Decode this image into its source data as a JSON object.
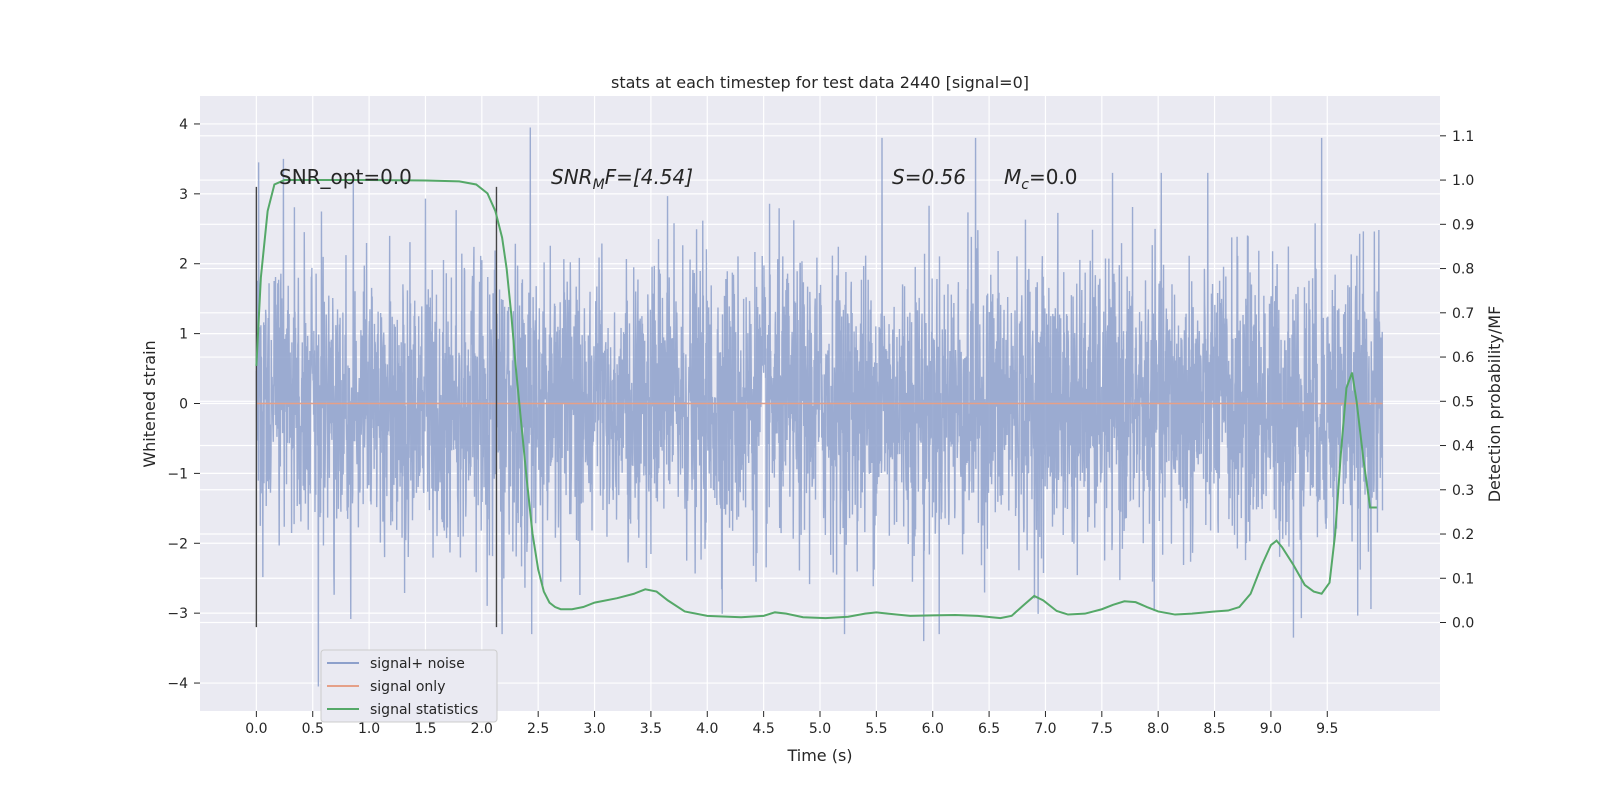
{
  "chart_data": {
    "type": "line",
    "title": "stats at each timestep for test data 2440 [signal=0]",
    "xlabel": "Time (s)",
    "ylabel": "Whitened strain",
    "y2label": "Detection probability/MF",
    "xlim": [
      -0.5,
      10.5
    ],
    "ylim": [
      -4.4,
      4.4
    ],
    "y2lim": [
      -0.2,
      1.19
    ],
    "xticks": [
      "0.0",
      "0.5",
      "1.0",
      "1.5",
      "2.0",
      "2.5",
      "3.0",
      "3.5",
      "4.0",
      "4.5",
      "5.0",
      "5.5",
      "6.0",
      "6.5",
      "7.0",
      "7.5",
      "8.0",
      "8.5",
      "9.0",
      "9.5"
    ],
    "yticks": [
      "4",
      "3",
      "2",
      "1",
      "0",
      "−1",
      "−2",
      "−3",
      "−4"
    ],
    "y2ticks": [
      "0.0",
      "0.1",
      "0.2",
      "0.3",
      "0.4",
      "0.5",
      "0.6",
      "0.7",
      "0.8",
      "0.9",
      "1.0",
      "1.1"
    ],
    "grid": true,
    "legend_position": "lower-left",
    "annotations": {
      "snr_opt": "SNR_opt=0.0",
      "snr_mf_base": "SNR",
      "snr_mf_sub": "M",
      "snr_mf_rest": "F=[4.54]",
      "s_label": "S=0.56",
      "mc_base": "M",
      "mc_sub": "c",
      "mc_rest": "=0.0"
    },
    "vertical_markers_x": [
      0.0,
      2.13
    ],
    "series": [
      {
        "name": "signal+ noise",
        "axis": "left",
        "color": "#8da0cb",
        "description": "whitened noise, approx. Gaussian around 0 with amplitude up to ±4",
        "x_range": [
          0.0,
          9.99
        ],
        "sample_spacing": 0.0025,
        "notable_peaks": [
          [
            0.02,
            3.45
          ],
          [
            0.24,
            3.5
          ],
          [
            2.43,
            3.95
          ],
          [
            5.55,
            3.8
          ],
          [
            6.38,
            3.8
          ],
          [
            9.45,
            3.8
          ],
          [
            0.55,
            -4.05
          ],
          [
            5.92,
            -3.4
          ],
          [
            9.2,
            -3.35
          ]
        ]
      },
      {
        "name": "signal only",
        "axis": "left",
        "color": "#e5a088",
        "x": [
          0.0,
          9.99
        ],
        "y": [
          0.0,
          0.0
        ]
      },
      {
        "name": "signal statistics",
        "axis": "right",
        "color": "#55a868",
        "x": [
          0.0,
          0.04,
          0.1,
          0.16,
          0.25,
          0.4,
          0.6,
          1.0,
          1.5,
          1.8,
          1.95,
          2.05,
          2.12,
          2.18,
          2.22,
          2.26,
          2.3,
          2.35,
          2.4,
          2.45,
          2.5,
          2.55,
          2.6,
          2.65,
          2.7,
          2.8,
          2.9,
          3.0,
          3.2,
          3.35,
          3.45,
          3.55,
          3.65,
          3.8,
          4.0,
          4.3,
          4.5,
          4.6,
          4.7,
          4.85,
          5.05,
          5.25,
          5.4,
          5.5,
          5.6,
          5.8,
          6.0,
          6.2,
          6.4,
          6.6,
          6.7,
          6.8,
          6.9,
          6.98,
          7.1,
          7.2,
          7.35,
          7.5,
          7.6,
          7.7,
          7.8,
          7.9,
          8.0,
          8.15,
          8.3,
          8.5,
          8.62,
          8.72,
          8.82,
          8.92,
          9.0,
          9.05,
          9.1,
          9.2,
          9.3,
          9.38,
          9.45,
          9.52,
          9.57,
          9.62,
          9.67,
          9.72,
          9.76,
          9.82,
          9.88,
          9.94
        ],
        "y": [
          0.58,
          0.78,
          0.93,
          0.99,
          1.0,
          1.0,
          1.0,
          1.0,
          0.999,
          0.997,
          0.99,
          0.97,
          0.93,
          0.87,
          0.8,
          0.7,
          0.58,
          0.45,
          0.32,
          0.2,
          0.12,
          0.07,
          0.045,
          0.035,
          0.03,
          0.03,
          0.035,
          0.045,
          0.055,
          0.065,
          0.075,
          0.07,
          0.05,
          0.025,
          0.015,
          0.012,
          0.015,
          0.023,
          0.02,
          0.012,
          0.01,
          0.013,
          0.02,
          0.023,
          0.02,
          0.015,
          0.016,
          0.017,
          0.015,
          0.01,
          0.015,
          0.038,
          0.06,
          0.05,
          0.026,
          0.018,
          0.02,
          0.03,
          0.04,
          0.048,
          0.046,
          0.035,
          0.025,
          0.018,
          0.02,
          0.025,
          0.027,
          0.035,
          0.065,
          0.13,
          0.175,
          0.185,
          0.17,
          0.13,
          0.085,
          0.07,
          0.065,
          0.09,
          0.2,
          0.38,
          0.53,
          0.565,
          0.5,
          0.37,
          0.26,
          0.26
        ]
      }
    ]
  }
}
